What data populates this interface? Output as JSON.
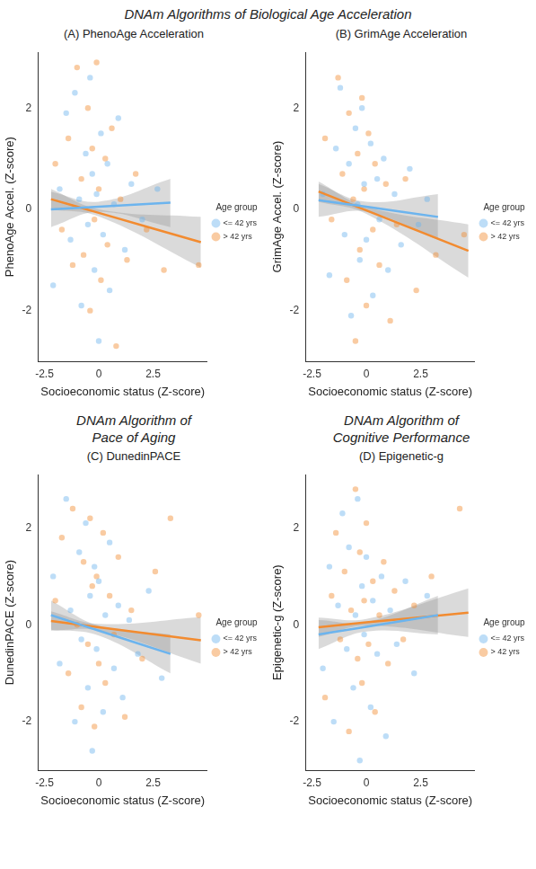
{
  "title": "DNAm Algorithms of Biological Age Acceleration",
  "chart_data": [
    {
      "type": "scatter",
      "title": "(A) PhenoAge Acceleration",
      "x_label": "Socioeconomic status (Z-score)",
      "y_label": "PhenoAge Accel. (Z-score)",
      "xlim": [
        -2.8,
        5
      ],
      "xticks": [
        -2.5,
        0,
        2.5
      ],
      "ylim": [
        -3,
        3.1
      ],
      "yticks": [
        -2,
        0,
        2
      ],
      "grid": false,
      "legend": "right",
      "legend_title": "Age group",
      "series": [
        {
          "name": "<= 42 yrs",
          "color": "#6cb4ee",
          "values": [
            [
              -2.1,
              -1.5
            ],
            [
              -1.8,
              0.4
            ],
            [
              -1.5,
              1.9
            ],
            [
              -1.3,
              -0.6
            ],
            [
              -1.1,
              2.3
            ],
            [
              -0.9,
              0.2
            ],
            [
              -0.8,
              -1.9
            ],
            [
              -0.6,
              1.1
            ],
            [
              -0.5,
              -0.3
            ],
            [
              -0.4,
              2.6
            ],
            [
              -0.3,
              0.7
            ],
            [
              -0.2,
              -1.2
            ],
            [
              -0.1,
              0.3
            ],
            [
              0.0,
              -2.6
            ],
            [
              0.1,
              1.5
            ],
            [
              0.2,
              -0.5
            ],
            [
              0.4,
              0.9
            ],
            [
              0.5,
              -1.6
            ],
            [
              0.7,
              0.1
            ],
            [
              0.9,
              1.8
            ],
            [
              1.2,
              -0.8
            ],
            [
              1.5,
              0.5
            ],
            [
              2.0,
              -0.2
            ],
            [
              2.7,
              0.4
            ]
          ],
          "fit": {
            "x": [
              -2.2,
              0,
              3.3
            ],
            "values": [
              0.0,
              0.05,
              0.13
            ],
            "ci_lower": [
              -0.35,
              -0.05,
              -0.35
            ],
            "ci_upper": [
              0.35,
              0.15,
              0.6
            ]
          }
        },
        {
          "name": "> 42 yrs",
          "color": "#f28b30",
          "values": [
            [
              -2.0,
              0.9
            ],
            [
              -1.7,
              -0.4
            ],
            [
              -1.4,
              1.4
            ],
            [
              -1.2,
              -1.1
            ],
            [
              -1.0,
              2.8
            ],
            [
              -0.8,
              0.6
            ],
            [
              -0.7,
              -0.9
            ],
            [
              -0.5,
              2.0
            ],
            [
              -0.4,
              -2.0
            ],
            [
              -0.3,
              1.2
            ],
            [
              -0.2,
              -0.2
            ],
            [
              -0.1,
              2.9
            ],
            [
              0.0,
              0.4
            ],
            [
              0.1,
              -1.4
            ],
            [
              0.3,
              1.0
            ],
            [
              0.4,
              -0.7
            ],
            [
              0.6,
              1.6
            ],
            [
              0.8,
              -2.7
            ],
            [
              1.0,
              0.2
            ],
            [
              1.3,
              -1.0
            ],
            [
              1.7,
              0.7
            ],
            [
              2.2,
              -0.4
            ],
            [
              3.0,
              -1.2
            ],
            [
              4.6,
              -1.1
            ]
          ],
          "fit": {
            "x": [
              -2.2,
              0,
              4.7
            ],
            "values": [
              0.2,
              -0.07,
              -0.65
            ],
            "ci_lower": [
              0.0,
              -0.14,
              -1.15
            ],
            "ci_upper": [
              0.4,
              0.0,
              -0.15
            ]
          }
        }
      ]
    },
    {
      "type": "scatter",
      "title": "(B) GrimAge Acceleration",
      "x_label": "Socioeconomic status (Z-score)",
      "y_label": "GrimAge Accel. (Z-score)",
      "xlim": [
        -2.8,
        5
      ],
      "xticks": [
        -2.5,
        0,
        2.5
      ],
      "ylim": [
        -3,
        3.1
      ],
      "yticks": [
        -2,
        0,
        2
      ],
      "grid": false,
      "legend": "right",
      "legend_title": "Age group",
      "series": [
        {
          "name": "<= 42 yrs",
          "color": "#6cb4ee",
          "values": [
            [
              -2.0,
              0.3
            ],
            [
              -1.7,
              -1.3
            ],
            [
              -1.4,
              1.2
            ],
            [
              -1.2,
              2.4
            ],
            [
              -1.0,
              -0.5
            ],
            [
              -0.8,
              0.9
            ],
            [
              -0.7,
              -2.1
            ],
            [
              -0.5,
              1.6
            ],
            [
              -0.4,
              0.1
            ],
            [
              -0.3,
              -1.0
            ],
            [
              -0.2,
              2.0
            ],
            [
              -0.1,
              0.5
            ],
            [
              0.0,
              -0.6
            ],
            [
              0.2,
              1.3
            ],
            [
              0.3,
              -1.7
            ],
            [
              0.5,
              0.6
            ],
            [
              0.6,
              -0.2
            ],
            [
              0.8,
              1.0
            ],
            [
              1.0,
              -1.2
            ],
            [
              1.3,
              0.3
            ],
            [
              1.6,
              -0.7
            ],
            [
              2.0,
              0.8
            ],
            [
              2.4,
              -0.3
            ],
            [
              2.8,
              0.2
            ]
          ],
          "fit": {
            "x": [
              -2.2,
              0,
              3.3
            ],
            "values": [
              0.18,
              0.05,
              -0.15
            ],
            "ci_lower": [
              -0.15,
              -0.05,
              -0.6
            ],
            "ci_upper": [
              0.5,
              0.15,
              0.3
            ]
          }
        },
        {
          "name": "> 42 yrs",
          "color": "#f28b30",
          "values": [
            [
              -1.9,
              1.4
            ],
            [
              -1.6,
              -0.2
            ],
            [
              -1.3,
              2.6
            ],
            [
              -1.1,
              0.7
            ],
            [
              -0.9,
              -1.4
            ],
            [
              -0.8,
              1.9
            ],
            [
              -0.6,
              0.2
            ],
            [
              -0.5,
              -2.6
            ],
            [
              -0.4,
              1.1
            ],
            [
              -0.3,
              -0.8
            ],
            [
              -0.2,
              2.2
            ],
            [
              -0.1,
              0.4
            ],
            [
              0.0,
              -1.9
            ],
            [
              0.1,
              1.5
            ],
            [
              0.3,
              -0.4
            ],
            [
              0.4,
              0.9
            ],
            [
              0.6,
              -1.1
            ],
            [
              0.9,
              0.5
            ],
            [
              1.1,
              -2.2
            ],
            [
              1.4,
              -0.3
            ],
            [
              1.8,
              0.6
            ],
            [
              2.3,
              -1.6
            ],
            [
              3.2,
              -0.9
            ],
            [
              4.5,
              -0.5
            ]
          ],
          "fit": {
            "x": [
              -2.2,
              0,
              4.7
            ],
            "values": [
              0.35,
              -0.02,
              -0.82
            ],
            "ci_lower": [
              0.15,
              -0.09,
              -1.35
            ],
            "ci_upper": [
              0.55,
              0.05,
              -0.3
            ]
          }
        }
      ]
    },
    {
      "type": "scatter",
      "subtitle": [
        "DNAm Algorithm of",
        "Pace of Aging"
      ],
      "title": "(C) DunedinPACE",
      "x_label": "Socioeconomic status (Z-score)",
      "y_label": "DunedinPACE (Z-score)",
      "xlim": [
        -2.8,
        5
      ],
      "xticks": [
        -2.5,
        0,
        2.5
      ],
      "ylim": [
        -3,
        3.1
      ],
      "yticks": [
        -2,
        0,
        2
      ],
      "grid": false,
      "legend": "right",
      "legend_title": "Age group",
      "series": [
        {
          "name": "<= 42 yrs",
          "color": "#6cb4ee",
          "values": [
            [
              -2.1,
              1.0
            ],
            [
              -1.8,
              -0.8
            ],
            [
              -1.5,
              2.6
            ],
            [
              -1.3,
              0.3
            ],
            [
              -1.1,
              -2.0
            ],
            [
              -0.9,
              1.5
            ],
            [
              -0.8,
              -0.3
            ],
            [
              -0.6,
              2.1
            ],
            [
              -0.5,
              -1.3
            ],
            [
              -0.4,
              0.6
            ],
            [
              -0.3,
              -2.6
            ],
            [
              -0.2,
              1.2
            ],
            [
              -0.1,
              -0.5
            ],
            [
              0.0,
              0.9
            ],
            [
              0.2,
              -1.8
            ],
            [
              0.3,
              0.2
            ],
            [
              0.5,
              1.7
            ],
            [
              0.7,
              -0.9
            ],
            [
              0.9,
              0.4
            ],
            [
              1.1,
              -1.5
            ],
            [
              1.4,
              0.1
            ],
            [
              1.8,
              -0.6
            ],
            [
              2.3,
              0.7
            ],
            [
              2.9,
              -1.1
            ]
          ],
          "fit": {
            "x": [
              -2.2,
              0,
              3.3
            ],
            "values": [
              0.2,
              -0.12,
              -0.6
            ],
            "ci_lower": [
              -0.1,
              -0.22,
              -1.0
            ],
            "ci_upper": [
              0.5,
              -0.02,
              -0.2
            ]
          }
        },
        {
          "name": "> 42 yrs",
          "color": "#f28b30",
          "values": [
            [
              -2.0,
              0.5
            ],
            [
              -1.7,
              1.8
            ],
            [
              -1.4,
              -1.0
            ],
            [
              -1.2,
              2.4
            ],
            [
              -1.0,
              0.0
            ],
            [
              -0.8,
              -1.7
            ],
            [
              -0.7,
              1.3
            ],
            [
              -0.5,
              -0.4
            ],
            [
              -0.4,
              2.2
            ],
            [
              -0.3,
              0.8
            ],
            [
              -0.2,
              -2.1
            ],
            [
              -0.1,
              1.0
            ],
            [
              0.0,
              -0.8
            ],
            [
              0.2,
              1.9
            ],
            [
              0.3,
              -1.2
            ],
            [
              0.5,
              0.6
            ],
            [
              0.7,
              -0.2
            ],
            [
              0.9,
              1.4
            ],
            [
              1.2,
              -1.9
            ],
            [
              1.5,
              0.3
            ],
            [
              2.0,
              -0.7
            ],
            [
              2.6,
              1.1
            ],
            [
              3.3,
              2.2
            ],
            [
              4.6,
              0.2
            ]
          ],
          "fit": {
            "x": [
              -2.2,
              0,
              4.7
            ],
            "values": [
              0.08,
              -0.05,
              -0.32
            ],
            "ci_lower": [
              -0.12,
              -0.12,
              -0.8
            ],
            "ci_upper": [
              0.28,
              0.02,
              0.16
            ]
          }
        }
      ]
    },
    {
      "type": "scatter",
      "subtitle": [
        "DNAm Algorithm of",
        "Cognitive Performance"
      ],
      "title": "(D) Epigenetic-g",
      "x_label": "Socioeconomic status (Z-score)",
      "y_label": "Epigenetic-g (Z-score)",
      "xlim": [
        -2.8,
        5
      ],
      "xticks": [
        -2.5,
        0,
        2.5
      ],
      "ylim": [
        -3,
        3.1
      ],
      "yticks": [
        -2,
        0,
        2
      ],
      "grid": false,
      "legend": "right",
      "legend_title": "Age group",
      "series": [
        {
          "name": "<= 42 yrs",
          "color": "#6cb4ee",
          "values": [
            [
              -2.0,
              -0.9
            ],
            [
              -1.7,
              1.2
            ],
            [
              -1.5,
              -2.0
            ],
            [
              -1.3,
              0.4
            ],
            [
              -1.1,
              2.3
            ],
            [
              -0.9,
              -0.5
            ],
            [
              -0.8,
              1.6
            ],
            [
              -0.6,
              -1.3
            ],
            [
              -0.5,
              0.2
            ],
            [
              -0.4,
              2.6
            ],
            [
              -0.3,
              -2.8
            ],
            [
              -0.2,
              0.8
            ],
            [
              -0.1,
              -0.2
            ],
            [
              0.0,
              1.4
            ],
            [
              0.2,
              -1.7
            ],
            [
              0.3,
              0.5
            ],
            [
              0.5,
              -0.6
            ],
            [
              0.7,
              1.0
            ],
            [
              0.9,
              -2.3
            ],
            [
              1.1,
              0.3
            ],
            [
              1.4,
              -0.4
            ],
            [
              1.8,
              0.9
            ],
            [
              2.2,
              -1.0
            ],
            [
              2.8,
              0.6
            ]
          ],
          "fit": {
            "x": [
              -2.2,
              0,
              3.3
            ],
            "values": [
              -0.2,
              -0.04,
              0.2
            ],
            "ci_lower": [
              -0.5,
              -0.14,
              -0.2
            ],
            "ci_upper": [
              0.1,
              0.06,
              0.6
            ]
          }
        },
        {
          "name": "> 42 yrs",
          "color": "#f28b30",
          "values": [
            [
              -1.9,
              -1.5
            ],
            [
              -1.6,
              0.6
            ],
            [
              -1.4,
              1.9
            ],
            [
              -1.2,
              -0.3
            ],
            [
              -1.0,
              1.1
            ],
            [
              -0.8,
              -2.2
            ],
            [
              -0.7,
              0.3
            ],
            [
              -0.5,
              2.8
            ],
            [
              -0.4,
              -0.7
            ],
            [
              -0.3,
              1.5
            ],
            [
              -0.2,
              -1.2
            ],
            [
              -0.1,
              0.5
            ],
            [
              0.0,
              2.1
            ],
            [
              0.1,
              -0.4
            ],
            [
              0.3,
              0.9
            ],
            [
              0.4,
              -1.8
            ],
            [
              0.6,
              0.2
            ],
            [
              0.8,
              1.3
            ],
            [
              1.0,
              -0.8
            ],
            [
              1.3,
              0.7
            ],
            [
              1.7,
              -0.3
            ],
            [
              2.2,
              0.4
            ],
            [
              3.0,
              1.0
            ],
            [
              4.3,
              2.4
            ]
          ],
          "fit": {
            "x": [
              -2.2,
              0,
              4.7
            ],
            "values": [
              -0.05,
              0.05,
              0.25
            ],
            "ci_lower": [
              -0.25,
              -0.02,
              -0.25
            ],
            "ci_upper": [
              0.15,
              0.12,
              0.75
            ]
          }
        }
      ]
    }
  ]
}
